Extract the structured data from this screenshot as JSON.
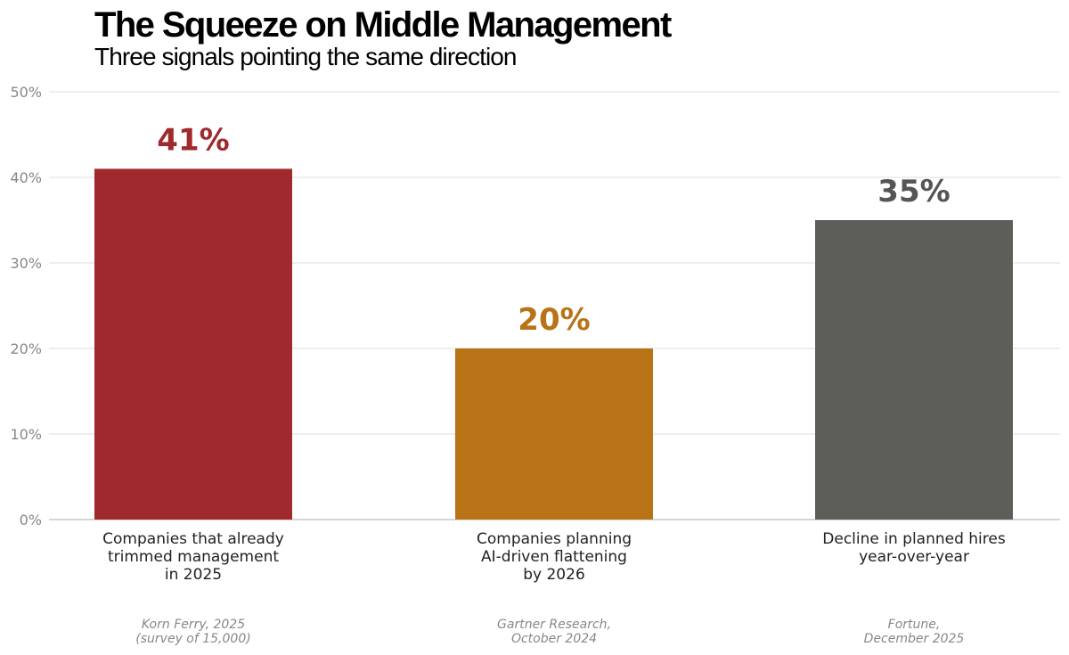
{
  "chart_data": {
    "type": "bar",
    "title": "The Squeeze on Middle Management",
    "subtitle": "Three signals pointing the same direction",
    "xlabel": "",
    "ylabel": "",
    "ylim": [
      0,
      50
    ],
    "y_ticks": [
      {
        "value": 0,
        "label": "0%"
      },
      {
        "value": 10,
        "label": "10%"
      },
      {
        "value": 20,
        "label": "20%"
      },
      {
        "value": 30,
        "label": "30%"
      },
      {
        "value": 40,
        "label": "40%"
      },
      {
        "value": 50,
        "label": "50%"
      }
    ],
    "grid": true,
    "legend": "none",
    "bars": [
      {
        "category": [
          "Companies that already",
          "trimmed management",
          "in 2025"
        ],
        "value": 41,
        "value_label": "41%",
        "color": "#a0292d",
        "label_color": "#a0292d",
        "source": [
          "Korn Ferry, 2025",
          "(survey of 15,000)"
        ]
      },
      {
        "category": [
          "Companies planning",
          "AI-driven flattening",
          "by 2026"
        ],
        "value": 20,
        "value_label": "20%",
        "color": "#b87317",
        "label_color": "#b87317",
        "source": [
          "Gartner Research,",
          "October 2024"
        ]
      },
      {
        "category": [
          "Decline in planned hires",
          "year-over-year"
        ],
        "value": 35,
        "value_label": "35%",
        "color": "#5d5e59",
        "label_color": "#555555",
        "source": [
          "Fortune,",
          "December 2025"
        ]
      }
    ]
  }
}
